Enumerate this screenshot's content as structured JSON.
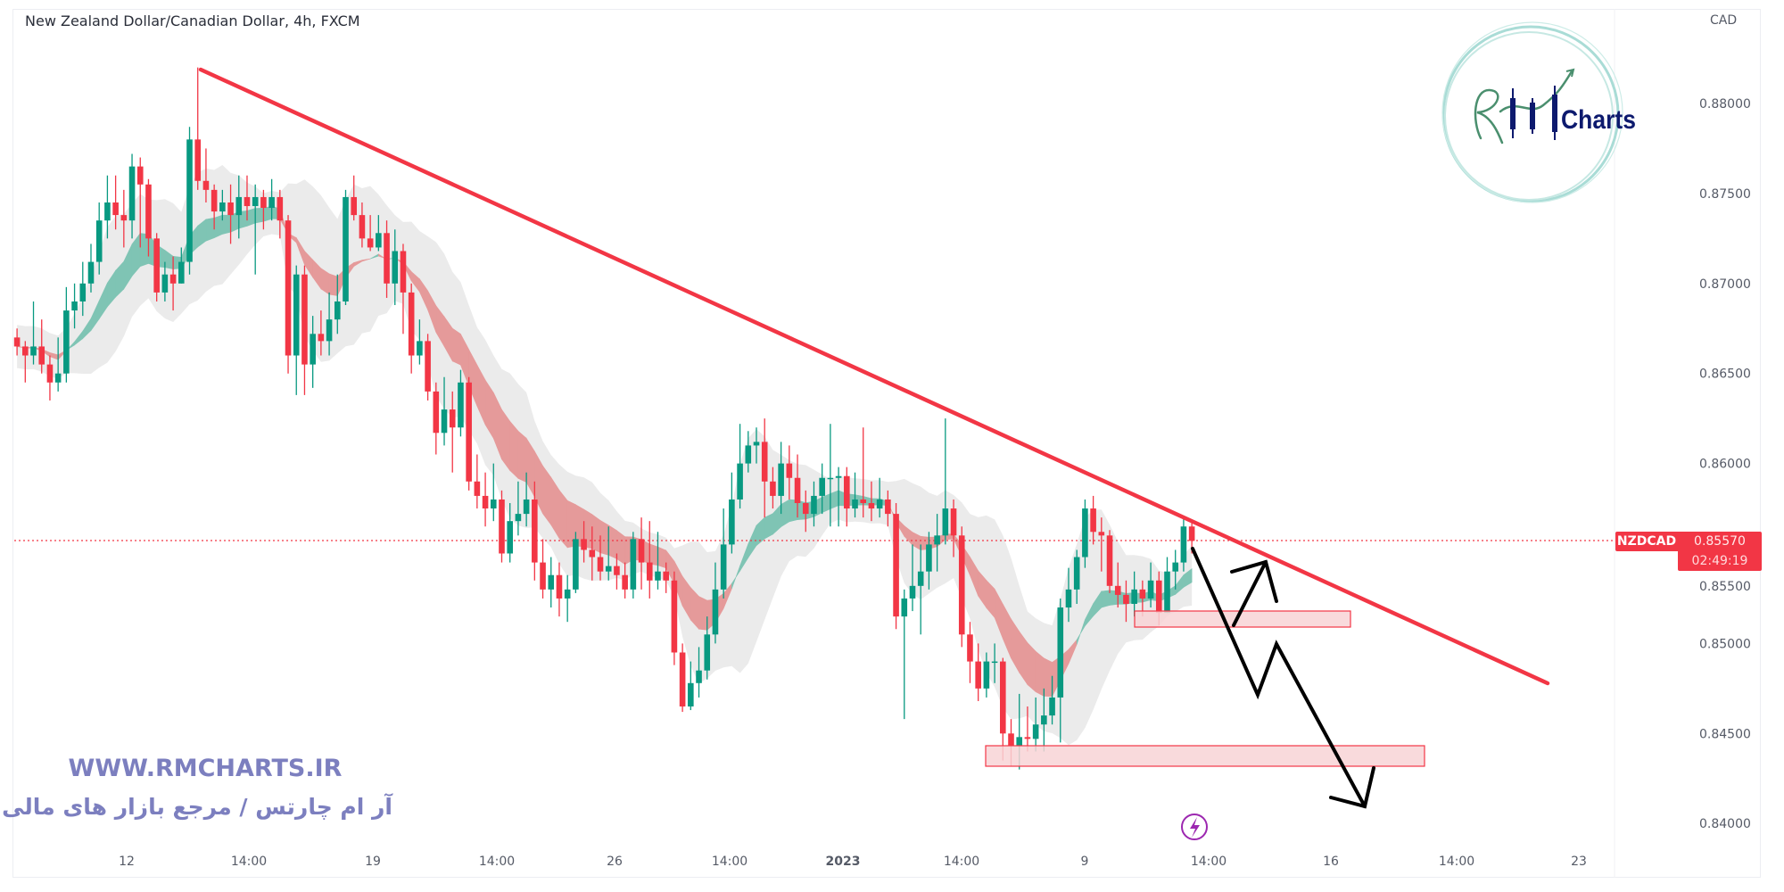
{
  "header": {
    "title": "New Zealand Dollar/Canadian Dollar, 4h, FXCM"
  },
  "price_axis": {
    "currency": "CAD",
    "labels": [
      "0.88000",
      "0.87500",
      "0.87000",
      "0.86500",
      "0.86000",
      "0.85500",
      "0.85000",
      "0.84500",
      "0.84000"
    ]
  },
  "time_axis": {
    "labels": [
      "12",
      "14:00",
      "19",
      "14:00",
      "26",
      "14:00",
      "2023",
      "14:00",
      "9",
      "14:00",
      "16",
      "14:00",
      "23"
    ]
  },
  "price_tag": {
    "symbol": "NZDCAD",
    "price": "0.85570",
    "countdown": "02:49:19"
  },
  "watermark": {
    "url": "WWW.RMCHARTS.IR",
    "tagline": "آر ام چارتس / مرجع بازار های مالی"
  },
  "logo": {
    "text": "Charts",
    "monogram": "RM"
  },
  "icons": {
    "event": "lightning-icon"
  },
  "colors": {
    "up": "#089981",
    "down": "#f23645",
    "trendline": "#f23645",
    "zone_fill": "#f8d3d6",
    "zone_stroke": "#f23645",
    "ribbon_up": "#7fc4b4",
    "ribbon_down": "#e59a9a",
    "envelope": "#e6e6e6",
    "watermark": "#7c7fbf",
    "logo_navy": "#0d1a6e",
    "logo_teal": "#a9dcd6"
  },
  "chart_data": {
    "type": "candlestick",
    "title": "New Zealand Dollar/Canadian Dollar, 4h, FXCM",
    "ylim": [
      0.8385,
      0.884
    ],
    "grid": false,
    "last_price": 0.8557,
    "candles": [
      [
        0.867,
        0.8675,
        0.866,
        0.8665
      ],
      [
        0.8665,
        0.8668,
        0.8645,
        0.866
      ],
      [
        0.866,
        0.869,
        0.8655,
        0.8665
      ],
      [
        0.8665,
        0.868,
        0.865,
        0.8655
      ],
      [
        0.8655,
        0.866,
        0.8635,
        0.8645
      ],
      [
        0.8645,
        0.867,
        0.864,
        0.865
      ],
      [
        0.865,
        0.8698,
        0.8645,
        0.8685
      ],
      [
        0.8685,
        0.87,
        0.8675,
        0.869
      ],
      [
        0.869,
        0.8712,
        0.8682,
        0.87
      ],
      [
        0.87,
        0.8722,
        0.8695,
        0.8712
      ],
      [
        0.8712,
        0.8745,
        0.8705,
        0.8735
      ],
      [
        0.8735,
        0.876,
        0.8725,
        0.8745
      ],
      [
        0.8745,
        0.876,
        0.873,
        0.8738
      ],
      [
        0.8738,
        0.8752,
        0.872,
        0.8735
      ],
      [
        0.8735,
        0.8772,
        0.8725,
        0.8765
      ],
      [
        0.8765,
        0.877,
        0.872,
        0.8755
      ],
      [
        0.8755,
        0.8758,
        0.8715,
        0.8725
      ],
      [
        0.8725,
        0.8728,
        0.869,
        0.8695
      ],
      [
        0.8695,
        0.8712,
        0.869,
        0.8705
      ],
      [
        0.8705,
        0.8715,
        0.8685,
        0.87
      ],
      [
        0.87,
        0.872,
        0.87,
        0.8712
      ],
      [
        0.8712,
        0.8787,
        0.8705,
        0.878
      ],
      [
        0.878,
        0.882,
        0.8752,
        0.8757
      ],
      [
        0.8757,
        0.8775,
        0.8745,
        0.8752
      ],
      [
        0.8752,
        0.8755,
        0.873,
        0.874
      ],
      [
        0.874,
        0.8752,
        0.8735,
        0.8745
      ],
      [
        0.8745,
        0.8755,
        0.8722,
        0.8738
      ],
      [
        0.8738,
        0.876,
        0.8725,
        0.8748
      ],
      [
        0.8748,
        0.876,
        0.8735,
        0.8743
      ],
      [
        0.8743,
        0.8755,
        0.8705,
        0.8748
      ],
      [
        0.8748,
        0.8752,
        0.873,
        0.8742
      ],
      [
        0.8742,
        0.8758,
        0.8735,
        0.8748
      ],
      [
        0.8748,
        0.8752,
        0.8725,
        0.8735
      ],
      [
        0.8735,
        0.8738,
        0.865,
        0.866
      ],
      [
        0.866,
        0.871,
        0.8638,
        0.8705
      ],
      [
        0.8705,
        0.871,
        0.8638,
        0.8655
      ],
      [
        0.8655,
        0.8682,
        0.8642,
        0.8672
      ],
      [
        0.8672,
        0.8685,
        0.866,
        0.8668
      ],
      [
        0.8668,
        0.8695,
        0.866,
        0.868
      ],
      [
        0.868,
        0.8705,
        0.8672,
        0.869
      ],
      [
        0.869,
        0.8752,
        0.8688,
        0.8748
      ],
      [
        0.8748,
        0.876,
        0.8735,
        0.8738
      ],
      [
        0.8738,
        0.8745,
        0.872,
        0.8725
      ],
      [
        0.8725,
        0.8738,
        0.8718,
        0.872
      ],
      [
        0.872,
        0.8738,
        0.8718,
        0.8728
      ],
      [
        0.8728,
        0.8735,
        0.8692,
        0.87
      ],
      [
        0.87,
        0.873,
        0.8688,
        0.8718
      ],
      [
        0.8718,
        0.8722,
        0.8672,
        0.8695
      ],
      [
        0.8695,
        0.87,
        0.865,
        0.866
      ],
      [
        0.866,
        0.868,
        0.8655,
        0.8668
      ],
      [
        0.8668,
        0.8672,
        0.8635,
        0.864
      ],
      [
        0.864,
        0.8645,
        0.8605,
        0.8617
      ],
      [
        0.8617,
        0.8648,
        0.861,
        0.863
      ],
      [
        0.863,
        0.864,
        0.8595,
        0.862
      ],
      [
        0.862,
        0.8652,
        0.8615,
        0.8645
      ],
      [
        0.8645,
        0.8648,
        0.8585,
        0.859
      ],
      [
        0.859,
        0.8605,
        0.8575,
        0.8582
      ],
      [
        0.8582,
        0.8595,
        0.8565,
        0.8575
      ],
      [
        0.8575,
        0.86,
        0.8568,
        0.858
      ],
      [
        0.858,
        0.8585,
        0.8545,
        0.855
      ],
      [
        0.855,
        0.8578,
        0.8545,
        0.8568
      ],
      [
        0.8568,
        0.859,
        0.856,
        0.8572
      ],
      [
        0.8572,
        0.8595,
        0.8565,
        0.858
      ],
      [
        0.858,
        0.859,
        0.8535,
        0.8545
      ],
      [
        0.8545,
        0.8558,
        0.8525,
        0.853
      ],
      [
        0.853,
        0.8548,
        0.852,
        0.8538
      ],
      [
        0.8538,
        0.8545,
        0.8515,
        0.8525
      ],
      [
        0.8525,
        0.8538,
        0.8512,
        0.853
      ],
      [
        0.853,
        0.8562,
        0.8528,
        0.8558
      ],
      [
        0.8558,
        0.8568,
        0.8545,
        0.8552
      ],
      [
        0.8552,
        0.8565,
        0.8535,
        0.8548
      ],
      [
        0.8548,
        0.856,
        0.8535,
        0.854
      ],
      [
        0.854,
        0.8565,
        0.8535,
        0.8543
      ],
      [
        0.8543,
        0.855,
        0.853,
        0.8538
      ],
      [
        0.8538,
        0.8545,
        0.8525,
        0.853
      ],
      [
        0.853,
        0.8562,
        0.8525,
        0.8558
      ],
      [
        0.8558,
        0.857,
        0.853,
        0.8545
      ],
      [
        0.8545,
        0.8568,
        0.8525,
        0.8535
      ],
      [
        0.8535,
        0.8562,
        0.853,
        0.854
      ],
      [
        0.854,
        0.8545,
        0.8528,
        0.8535
      ],
      [
        0.8535,
        0.854,
        0.8488,
        0.8495
      ],
      [
        0.8495,
        0.85,
        0.8462,
        0.8465
      ],
      [
        0.8465,
        0.849,
        0.8463,
        0.8478
      ],
      [
        0.8478,
        0.8498,
        0.847,
        0.8485
      ],
      [
        0.8485,
        0.8515,
        0.848,
        0.8505
      ],
      [
        0.8505,
        0.8545,
        0.85,
        0.853
      ],
      [
        0.853,
        0.8575,
        0.8525,
        0.8555
      ],
      [
        0.8555,
        0.8595,
        0.855,
        0.858
      ],
      [
        0.858,
        0.8622,
        0.8575,
        0.86
      ],
      [
        0.86,
        0.8618,
        0.8595,
        0.861
      ],
      [
        0.861,
        0.862,
        0.86,
        0.8612
      ],
      [
        0.8612,
        0.8625,
        0.857,
        0.859
      ],
      [
        0.859,
        0.8598,
        0.8575,
        0.8582
      ],
      [
        0.8582,
        0.8612,
        0.8572,
        0.86
      ],
      [
        0.86,
        0.861,
        0.858,
        0.8592
      ],
      [
        0.8592,
        0.8605,
        0.857,
        0.8578
      ],
      [
        0.8578,
        0.8585,
        0.8562,
        0.8572
      ],
      [
        0.8572,
        0.859,
        0.8565,
        0.8582
      ],
      [
        0.8582,
        0.86,
        0.8572,
        0.8592
      ],
      [
        0.8592,
        0.8622,
        0.8565,
        0.8592
      ],
      [
        0.8592,
        0.8598,
        0.8565,
        0.8593
      ],
      [
        0.8593,
        0.8598,
        0.8565,
        0.8575
      ],
      [
        0.8575,
        0.8595,
        0.857,
        0.858
      ],
      [
        0.858,
        0.862,
        0.857,
        0.8578
      ],
      [
        0.8578,
        0.859,
        0.8568,
        0.8575
      ],
      [
        0.8575,
        0.8592,
        0.857,
        0.858
      ],
      [
        0.858,
        0.8585,
        0.8565,
        0.8572
      ],
      [
        0.8572,
        0.8578,
        0.8508,
        0.8515
      ],
      [
        0.8515,
        0.853,
        0.8458,
        0.8525
      ],
      [
        0.8525,
        0.8555,
        0.8518,
        0.8532
      ],
      [
        0.8532,
        0.8555,
        0.8505,
        0.854
      ],
      [
        0.854,
        0.8562,
        0.853,
        0.8555
      ],
      [
        0.8555,
        0.8572,
        0.854,
        0.856
      ],
      [
        0.856,
        0.8625,
        0.8555,
        0.8575
      ],
      [
        0.8575,
        0.858,
        0.8548,
        0.856
      ],
      [
        0.856,
        0.8565,
        0.8498,
        0.8505
      ],
      [
        0.8505,
        0.8512,
        0.8478,
        0.849
      ],
      [
        0.849,
        0.85,
        0.8468,
        0.8475
      ],
      [
        0.8475,
        0.8495,
        0.847,
        0.849
      ],
      [
        0.849,
        0.85,
        0.8478,
        0.849
      ],
      [
        0.849,
        0.8492,
        0.8435,
        0.845
      ],
      [
        0.845,
        0.8458,
        0.8432,
        0.8443
      ],
      [
        0.8443,
        0.8472,
        0.843,
        0.8448
      ],
      [
        0.8448,
        0.8465,
        0.844,
        0.8447
      ],
      [
        0.8447,
        0.847,
        0.844,
        0.8455
      ],
      [
        0.8455,
        0.8475,
        0.844,
        0.846
      ],
      [
        0.846,
        0.8482,
        0.8455,
        0.847
      ],
      [
        0.847,
        0.8525,
        0.8445,
        0.852
      ],
      [
        0.852,
        0.8542,
        0.8512,
        0.853
      ],
      [
        0.853,
        0.8552,
        0.8522,
        0.8548
      ],
      [
        0.8548,
        0.858,
        0.8542,
        0.8575
      ],
      [
        0.8575,
        0.8582,
        0.8555,
        0.8562
      ],
      [
        0.8562,
        0.857,
        0.854,
        0.856
      ],
      [
        0.856,
        0.8563,
        0.8528,
        0.8532
      ],
      [
        0.8532,
        0.8545,
        0.852,
        0.8527
      ],
      [
        0.8527,
        0.8535,
        0.8512,
        0.8522
      ],
      [
        0.8522,
        0.854,
        0.8515,
        0.853
      ],
      [
        0.853,
        0.8535,
        0.8515,
        0.8525
      ],
      [
        0.8525,
        0.8545,
        0.852,
        0.8535
      ],
      [
        0.8535,
        0.854,
        0.851,
        0.8517
      ],
      [
        0.8517,
        0.8548,
        0.8517,
        0.854
      ],
      [
        0.854,
        0.8552,
        0.853,
        0.8545
      ],
      [
        0.8545,
        0.857,
        0.854,
        0.8565
      ],
      [
        0.8565,
        0.8568,
        0.855,
        0.8557
      ]
    ]
  }
}
